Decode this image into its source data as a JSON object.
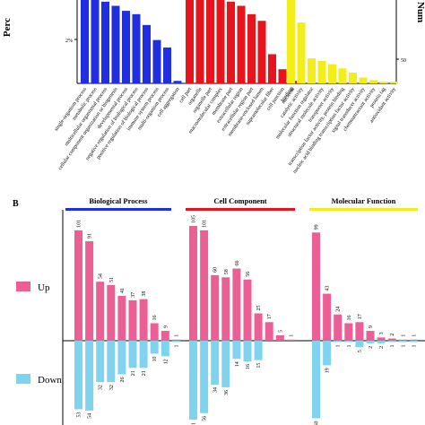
{
  "panel_a": {
    "left_axis_title": "Perc",
    "right_axis_title": "Num",
    "left_tick": "2%",
    "right_tick": "50"
  },
  "panel_b": {
    "label": "B",
    "legend": {
      "up": "Up",
      "down": "Down"
    }
  },
  "colors": {
    "bp": "#1f2fe0",
    "cc": "#e8141c",
    "mf": "#f3ee1a",
    "up": "#ec5f95",
    "down": "#7fd3ee"
  },
  "chart_data": [
    {
      "type": "bar",
      "groups": [
        {
          "name": "Biological Process",
          "color": "#1f2fe0",
          "categories": [
            "single-organism process",
            "metabolic process",
            "multicellular organismal process",
            "cellular component organization or biogenesis",
            "developmental process",
            "negative regulation of biological process",
            "positive regulation of biological process",
            "immune system process",
            "multi-organism process",
            "cell aggregation"
          ],
          "values": [
            100,
            100,
            98,
            93,
            87,
            83,
            70,
            52,
            43,
            3
          ]
        },
        {
          "name": "Cell Component",
          "color": "#e8141c",
          "categories": [
            "cell part",
            "organelle",
            "organelle part",
            "macromolecular complex",
            "membrane part",
            "extracellular region",
            "extracellular region part",
            "membrane-enclosed lumen",
            "supramolecular fiber",
            "cell junction",
            "nucleoid"
          ],
          "values": [
            100,
            100,
            100,
            100,
            98,
            93,
            83,
            75,
            35,
            17,
            3
          ]
        },
        {
          "name": "Molecular Function",
          "color": "#f3ee1a",
          "categories": [
            "binding",
            "catalytic activity",
            "molecular function regulator",
            "structural molecule activity",
            "transporter activity",
            "transcription factor activity, protein binding",
            "nucleic acid binding transcription factor activity",
            "signal transducer activity",
            "chemoattractant activity",
            "protein tag",
            "antioxidant activity"
          ],
          "values": [
            100,
            73,
            30,
            27,
            23,
            18,
            13,
            7,
            4,
            2,
            2
          ]
        }
      ]
    },
    {
      "type": "bar",
      "groups": [
        {
          "name": "Biological Process",
          "up": [
            101,
            91,
            54,
            51,
            41,
            37,
            38,
            16,
            9,
            1
          ],
          "down": [
            53,
            54,
            32,
            32,
            26,
            21,
            21,
            10,
            12,
            1
          ]
        },
        {
          "name": "Cell Component",
          "up": [
            105,
            101,
            60,
            58,
            66,
            56,
            25,
            17,
            5,
            1
          ],
          "down": [
            61,
            56,
            34,
            36,
            14,
            16,
            15,
            0,
            0,
            0
          ]
        },
        {
          "name": "Molecular Function",
          "up": [
            99,
            43,
            24,
            16,
            17,
            9,
            3,
            2,
            1,
            1
          ],
          "down": [
            60,
            19,
            1,
            1,
            5,
            2,
            2,
            1,
            1,
            1
          ]
        }
      ],
      "series": [
        {
          "name": "Up",
          "color": "#ec5f95"
        },
        {
          "name": "Down",
          "color": "#7fd3ee"
        }
      ]
    }
  ]
}
